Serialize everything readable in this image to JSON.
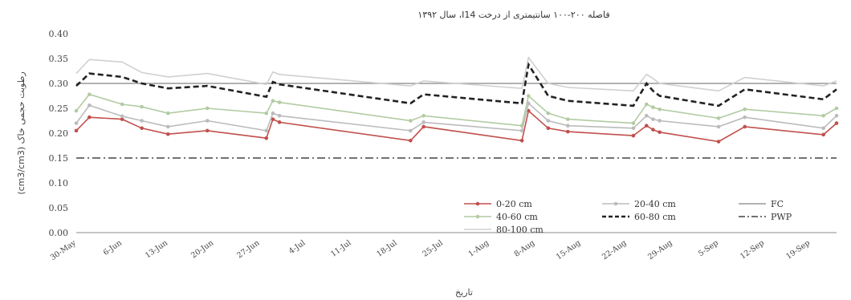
{
  "chart_data": {
    "type": "line",
    "title": "فاصله ۲۰۰-۱۰۰ سانتیمتری از درخت I14، سال ۱۳۹۲",
    "xlabel": "تاریخ",
    "ylabel": "رطوبت حجمی خاک (cm3/cm3)",
    "ylim": [
      0,
      0.4
    ],
    "yticks": [
      "0.00",
      "0.05",
      "0.10",
      "0.15",
      "0.20",
      "0.25",
      "0.30",
      "0.35",
      "0.40"
    ],
    "xticks": [
      "30-May",
      "6-Jun",
      "13-Jun",
      "20-Jun",
      "27-Jun",
      "4-Jul",
      "11-Jul",
      "18-Jul",
      "25-Jul",
      "1-Aug",
      "8-Aug",
      "15-Aug",
      "22-Aug",
      "29-Aug",
      "5-Sep",
      "12-Sep",
      "19-Sep"
    ],
    "x_start": "30-May",
    "x_end": "23-Sep",
    "grid": false,
    "legend_position": "bottom-right",
    "series": [
      {
        "name": "0-20 cm",
        "color": "#c0504d",
        "marker": "dot",
        "style": "solid",
        "points": [
          [
            "30-May",
            0.205
          ],
          [
            "1-Jun",
            0.232
          ],
          [
            "6-Jun",
            0.228
          ],
          [
            "9-Jun",
            0.21
          ],
          [
            "13-Jun",
            0.198
          ],
          [
            "19-Jun",
            0.205
          ],
          [
            "28-Jun",
            0.19
          ],
          [
            "29-Jun",
            0.228
          ],
          [
            "30-Jun",
            0.222
          ],
          [
            "20-Jul",
            0.185
          ],
          [
            "22-Jul",
            0.213
          ],
          [
            "6-Aug",
            0.185
          ],
          [
            "7-Aug",
            0.245
          ],
          [
            "10-Aug",
            0.21
          ],
          [
            "13-Aug",
            0.203
          ],
          [
            "23-Aug",
            0.195
          ],
          [
            "25-Aug",
            0.215
          ],
          [
            "26-Aug",
            0.207
          ],
          [
            "27-Aug",
            0.202
          ],
          [
            "5-Sep",
            0.183
          ],
          [
            "9-Sep",
            0.213
          ],
          [
            "21-Sep",
            0.197
          ],
          [
            "23-Sep",
            0.22
          ]
        ]
      },
      {
        "name": "20-40 cm",
        "color": "#bbbbbb",
        "marker": "dot",
        "style": "solid",
        "points": [
          [
            "30-May",
            0.22
          ],
          [
            "1-Jun",
            0.256
          ],
          [
            "6-Jun",
            0.234
          ],
          [
            "9-Jun",
            0.225
          ],
          [
            "13-Jun",
            0.213
          ],
          [
            "19-Jun",
            0.225
          ],
          [
            "28-Jun",
            0.205
          ],
          [
            "29-Jun",
            0.24
          ],
          [
            "30-Jun",
            0.235
          ],
          [
            "20-Jul",
            0.205
          ],
          [
            "22-Jul",
            0.222
          ],
          [
            "6-Aug",
            0.205
          ],
          [
            "7-Aug",
            0.26
          ],
          [
            "10-Aug",
            0.225
          ],
          [
            "13-Aug",
            0.215
          ],
          [
            "23-Aug",
            0.21
          ],
          [
            "25-Aug",
            0.235
          ],
          [
            "26-Aug",
            0.228
          ],
          [
            "27-Aug",
            0.225
          ],
          [
            "5-Sep",
            0.213
          ],
          [
            "9-Sep",
            0.232
          ],
          [
            "21-Sep",
            0.21
          ],
          [
            "23-Sep",
            0.235
          ]
        ]
      },
      {
        "name": "FC",
        "color": "#999999",
        "marker": "none",
        "style": "solid",
        "points": [
          [
            "30-May",
            0.3
          ],
          [
            "23-Sep",
            0.3
          ]
        ]
      },
      {
        "name": "40-60 cm",
        "color": "#b2cba3",
        "marker": "dot",
        "style": "solid",
        "points": [
          [
            "30-May",
            0.245
          ],
          [
            "1-Jun",
            0.278
          ],
          [
            "6-Jun",
            0.258
          ],
          [
            "9-Jun",
            0.253
          ],
          [
            "13-Jun",
            0.24
          ],
          [
            "19-Jun",
            0.25
          ],
          [
            "28-Jun",
            0.24
          ],
          [
            "29-Jun",
            0.265
          ],
          [
            "30-Jun",
            0.262
          ],
          [
            "20-Jul",
            0.225
          ],
          [
            "22-Jul",
            0.235
          ],
          [
            "6-Aug",
            0.215
          ],
          [
            "7-Aug",
            0.275
          ],
          [
            "10-Aug",
            0.24
          ],
          [
            "13-Aug",
            0.228
          ],
          [
            "23-Aug",
            0.22
          ],
          [
            "25-Aug",
            0.258
          ],
          [
            "26-Aug",
            0.252
          ],
          [
            "27-Aug",
            0.248
          ],
          [
            "5-Sep",
            0.23
          ],
          [
            "9-Sep",
            0.248
          ],
          [
            "21-Sep",
            0.235
          ],
          [
            "23-Sep",
            0.25
          ]
        ]
      },
      {
        "name": "60-80 cm",
        "color": "#222222",
        "marker": "none",
        "style": "dashed",
        "points": [
          [
            "30-May",
            0.295
          ],
          [
            "1-Jun",
            0.32
          ],
          [
            "6-Jun",
            0.313
          ],
          [
            "9-Jun",
            0.3
          ],
          [
            "13-Jun",
            0.29
          ],
          [
            "19-Jun",
            0.295
          ],
          [
            "28-Jun",
            0.273
          ],
          [
            "29-Jun",
            0.303
          ],
          [
            "30-Jun",
            0.298
          ],
          [
            "20-Jul",
            0.26
          ],
          [
            "22-Jul",
            0.278
          ],
          [
            "6-Aug",
            0.26
          ],
          [
            "7-Aug",
            0.338
          ],
          [
            "10-Aug",
            0.275
          ],
          [
            "13-Aug",
            0.265
          ],
          [
            "23-Aug",
            0.255
          ],
          [
            "25-Aug",
            0.3
          ],
          [
            "26-Aug",
            0.285
          ],
          [
            "27-Aug",
            0.275
          ],
          [
            "5-Sep",
            0.255
          ],
          [
            "9-Sep",
            0.288
          ],
          [
            "21-Sep",
            0.268
          ],
          [
            "23-Sep",
            0.288
          ]
        ]
      },
      {
        "name": "PWP",
        "color": "#444444",
        "marker": "none",
        "style": "dashdot",
        "points": [
          [
            "30-May",
            0.15
          ],
          [
            "23-Sep",
            0.15
          ]
        ]
      },
      {
        "name": "80-100 cm",
        "color": "#d0d0d0",
        "marker": "none",
        "style": "solid",
        "points": [
          [
            "30-May",
            0.32
          ],
          [
            "1-Jun",
            0.348
          ],
          [
            "6-Jun",
            0.343
          ],
          [
            "9-Jun",
            0.322
          ],
          [
            "13-Jun",
            0.313
          ],
          [
            "19-Jun",
            0.32
          ],
          [
            "28-Jun",
            0.298
          ],
          [
            "29-Jun",
            0.323
          ],
          [
            "30-Jun",
            0.318
          ],
          [
            "20-Jul",
            0.295
          ],
          [
            "22-Jul",
            0.305
          ],
          [
            "6-Aug",
            0.29
          ],
          [
            "7-Aug",
            0.352
          ],
          [
            "10-Aug",
            0.3
          ],
          [
            "13-Aug",
            0.292
          ],
          [
            "23-Aug",
            0.285
          ],
          [
            "25-Aug",
            0.318
          ],
          [
            "26-Aug",
            0.31
          ],
          [
            "27-Aug",
            0.3
          ],
          [
            "5-Sep",
            0.285
          ],
          [
            "9-Sep",
            0.312
          ],
          [
            "21-Sep",
            0.295
          ],
          [
            "23-Sep",
            0.305
          ]
        ]
      }
    ]
  }
}
